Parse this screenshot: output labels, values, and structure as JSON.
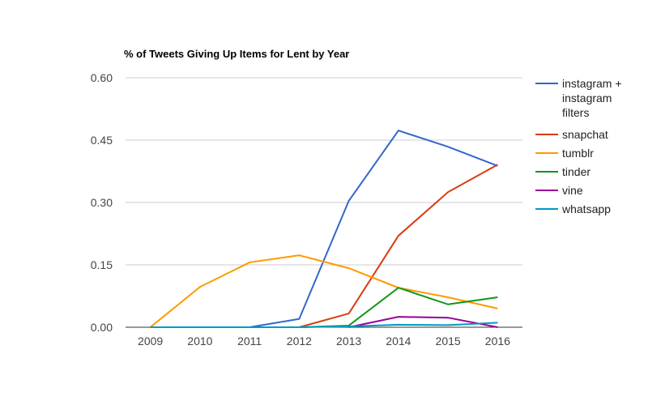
{
  "chart_data": {
    "type": "line",
    "title": "% of Tweets Giving Up Items for Lent by Year",
    "xlabel": "",
    "ylabel": "",
    "x": [
      "2009",
      "2010",
      "2011",
      "2012",
      "2013",
      "2014",
      "2015",
      "2016"
    ],
    "ylim": [
      0,
      0.6
    ],
    "yticks": [
      "0.00",
      "0.15",
      "0.30",
      "0.45",
      "0.60"
    ],
    "ytick_values": [
      0,
      0.15,
      0.3,
      0.45,
      0.6
    ],
    "grid": true,
    "legend_position": "right",
    "series": [
      {
        "name": "instagram + instagram filters",
        "legend_lines": [
          "instagram +",
          "instagram",
          "filters"
        ],
        "color": "#3366cc",
        "values": [
          null,
          null,
          0,
          0.02,
          0.304,
          0.473,
          0.434,
          0.388
        ]
      },
      {
        "name": "snapchat",
        "legend_lines": [
          "snapchat"
        ],
        "color": "#dc3912",
        "values": [
          null,
          null,
          null,
          0,
          0.033,
          0.22,
          0.325,
          0.391
        ]
      },
      {
        "name": "tumblr",
        "legend_lines": [
          "tumblr"
        ],
        "color": "#ff9900",
        "values": [
          0,
          0.097,
          0.156,
          0.173,
          0.142,
          0.095,
          0.072,
          0.045
        ]
      },
      {
        "name": "tinder",
        "legend_lines": [
          "tinder"
        ],
        "color": "#109618",
        "values": [
          null,
          null,
          null,
          0,
          0.004,
          0.095,
          0.055,
          0.072
        ]
      },
      {
        "name": "vine",
        "legend_lines": [
          "vine"
        ],
        "color": "#990099",
        "values": [
          null,
          null,
          null,
          null,
          0,
          0.025,
          0.023,
          0
        ]
      },
      {
        "name": "whatsapp",
        "legend_lines": [
          "whatsapp"
        ],
        "color": "#0099c6",
        "values": [
          0,
          0,
          0,
          0,
          0.002,
          0.006,
          0.005,
          0.011
        ]
      }
    ]
  }
}
